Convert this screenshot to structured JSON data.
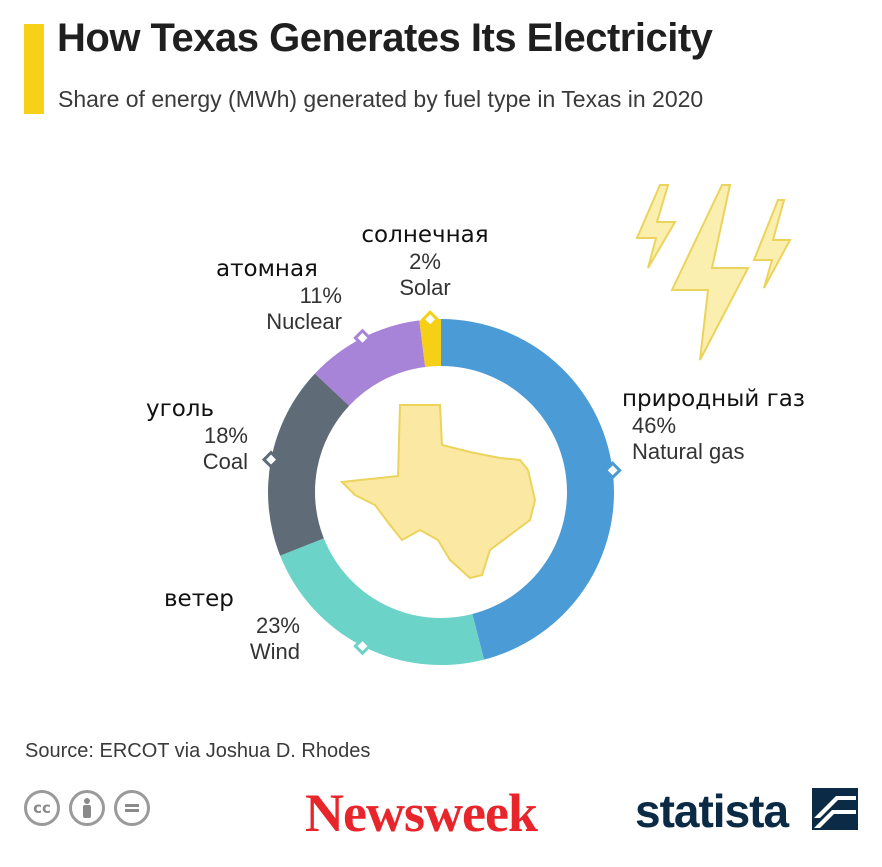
{
  "header": {
    "title": "How Texas Generates Its Electricity",
    "subtitle": "Share of energy (MWh) generated by fuel type in Texas in 2020",
    "accent_color": "#f7d117"
  },
  "chart_data": {
    "type": "pie",
    "title": "How Texas Generates Its Electricity",
    "subtitle": "Share of energy (MWh) generated by fuel type in Texas in 2020",
    "donut": true,
    "unit": "%",
    "slices": [
      {
        "label": "Natural gas",
        "label_ru": "природный газ",
        "value": 46,
        "pct_text": "46%",
        "color": "#4a9bd6"
      },
      {
        "label": "Wind",
        "label_ru": "ветер",
        "value": 23,
        "pct_text": "23%",
        "color": "#6cd3c8"
      },
      {
        "label": "Coal",
        "label_ru": "уголь",
        "value": 18,
        "pct_text": "18%",
        "color": "#5f6c78"
      },
      {
        "label": "Nuclear",
        "label_ru": "атомная",
        "value": 11,
        "pct_text": "11%",
        "color": "#a784d8"
      },
      {
        "label": "Solar",
        "label_ru": "солнечная",
        "value": 2,
        "pct_text": "2%",
        "color": "#f5d016"
      }
    ],
    "center_image": "texas-state-outline",
    "decoration": "lightning-bolt-icons"
  },
  "footer": {
    "source": "Source: ERCOT via Joshua D. Rhodes",
    "cc_icons": [
      "cc",
      "by",
      "="
    ],
    "newsweek_logo": "Newsweek",
    "newsweek_color": "#e8252b",
    "statista_logo": "statista",
    "statista_color": "#0b2a45"
  }
}
